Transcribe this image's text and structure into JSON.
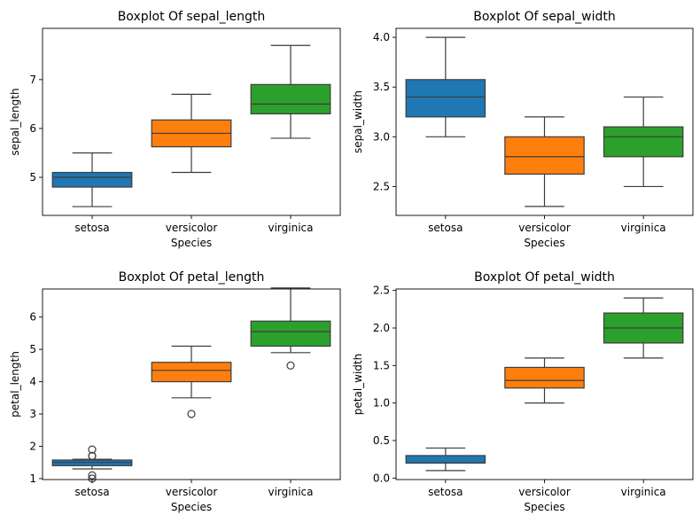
{
  "figure": {
    "background": "#ffffff"
  },
  "chart_data": [
    {
      "type": "box",
      "title": "Boxplot Of sepal_length",
      "xlabel": "Species",
      "ylabel": "sepal_length",
      "ylim": [
        4.22,
        8.05
      ],
      "yticks": [
        5,
        6,
        7
      ],
      "categories": [
        "setosa",
        "versicolor",
        "virginica"
      ],
      "colors": [
        "#1f77b4",
        "#ff7f0e",
        "#2ca02c"
      ],
      "boxes": [
        {
          "min": 4.4,
          "q1": 4.8,
          "median": 5.0,
          "q3": 5.1,
          "max": 5.5,
          "outliers": []
        },
        {
          "min": 5.1,
          "q1": 5.625,
          "median": 5.9,
          "q3": 6.175,
          "max": 6.7,
          "outliers": []
        },
        {
          "min": 5.8,
          "q1": 6.3,
          "median": 6.5,
          "q3": 6.9,
          "max": 7.7,
          "outliers": []
        }
      ]
    },
    {
      "type": "box",
      "title": "Boxplot Of sepal_width",
      "xlabel": "Species",
      "ylabel": "sepal_width",
      "ylim": [
        2.21,
        4.09
      ],
      "yticks": [
        2.5,
        3.0,
        3.5,
        4.0
      ],
      "categories": [
        "setosa",
        "versicolor",
        "virginica"
      ],
      "colors": [
        "#1f77b4",
        "#ff7f0e",
        "#2ca02c"
      ],
      "boxes": [
        {
          "min": 3.0,
          "q1": 3.2,
          "median": 3.4,
          "q3": 3.575,
          "max": 4.0,
          "outliers": []
        },
        {
          "min": 2.3,
          "q1": 2.625,
          "median": 2.8,
          "q3": 3.0,
          "max": 3.2,
          "outliers": []
        },
        {
          "min": 2.5,
          "q1": 2.8,
          "median": 3.0,
          "q3": 3.1,
          "max": 3.4,
          "outliers": []
        }
      ]
    },
    {
      "type": "box",
      "title": "Boxplot Of petal_length",
      "xlabel": "Species",
      "ylabel": "petal_length",
      "ylim": [
        0.97,
        6.87
      ],
      "yticks": [
        1,
        2,
        3,
        4,
        5,
        6
      ],
      "categories": [
        "setosa",
        "versicolor",
        "virginica"
      ],
      "colors": [
        "#1f77b4",
        "#ff7f0e",
        "#2ca02c"
      ],
      "boxes": [
        {
          "min": 1.3,
          "q1": 1.4,
          "median": 1.5,
          "q3": 1.575,
          "max": 1.6,
          "outliers": [
            1.0,
            1.1,
            1.7,
            1.7,
            1.9
          ]
        },
        {
          "min": 3.5,
          "q1": 4.0,
          "median": 4.35,
          "q3": 4.6,
          "max": 5.1,
          "outliers": [
            3.0
          ]
        },
        {
          "min": 4.9,
          "q1": 5.1,
          "median": 5.55,
          "q3": 5.875,
          "max": 6.9,
          "outliers": [
            4.5
          ]
        }
      ]
    },
    {
      "type": "box",
      "title": "Boxplot Of petal_width",
      "xlabel": "Species",
      "ylabel": "petal_width",
      "ylim": [
        -0.02,
        2.52
      ],
      "yticks": [
        0.0,
        0.5,
        1.0,
        1.5,
        2.0,
        2.5
      ],
      "categories": [
        "setosa",
        "versicolor",
        "virginica"
      ],
      "colors": [
        "#1f77b4",
        "#ff7f0e",
        "#2ca02c"
      ],
      "boxes": [
        {
          "min": 0.1,
          "q1": 0.2,
          "median": 0.2,
          "q3": 0.3,
          "max": 0.4,
          "outliers": []
        },
        {
          "min": 1.0,
          "q1": 1.2,
          "median": 1.3,
          "q3": 1.475,
          "max": 1.6,
          "outliers": []
        },
        {
          "min": 1.6,
          "q1": 1.8,
          "median": 2.0,
          "q3": 2.2,
          "max": 2.4,
          "outliers": []
        }
      ]
    }
  ]
}
